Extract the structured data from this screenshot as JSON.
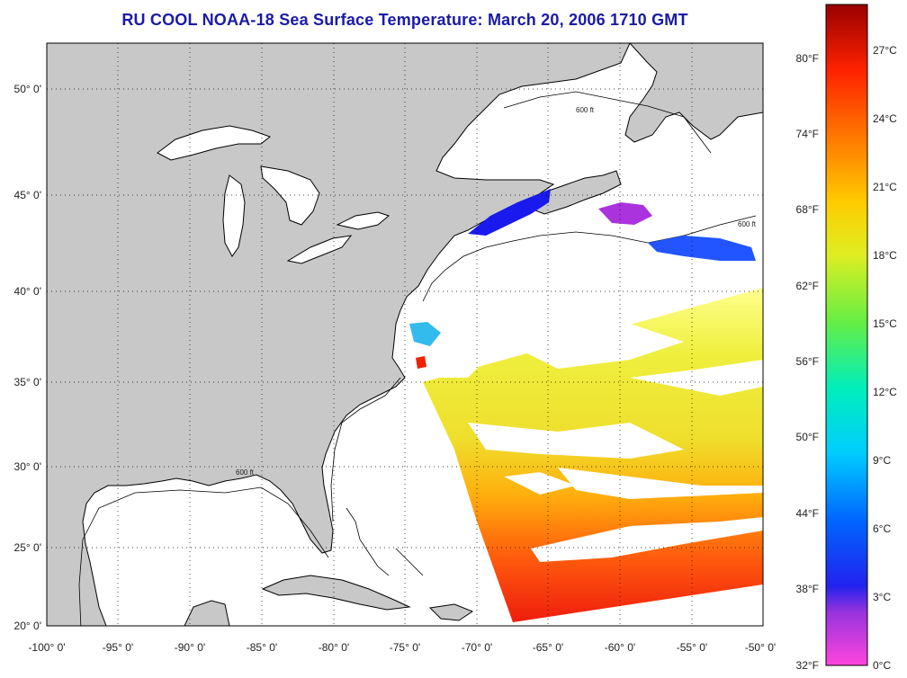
{
  "title": "RU COOL  NOAA-18  Sea Surface Temperature:  March 20, 2006 1710 GMT",
  "lat_labels": [
    "50° 0'",
    "45° 0'",
    "40° 0'",
    "35° 0'",
    "30° 0'",
    "25° 0'",
    "20° 0'"
  ],
  "lon_labels": [
    "-100° 0'",
    "-95° 0'",
    "-90° 0'",
    "-85° 0'",
    "-80° 0'",
    "-75° 0'",
    "-70° 0'",
    "-65° 0'",
    "-60° 0'",
    "-55° 0'",
    "-50° 0'"
  ],
  "colorbar": {
    "fahrenheit": [
      "80°F",
      "74°F",
      "68°F",
      "62°F",
      "56°F",
      "50°F",
      "44°F",
      "38°F",
      "32°F"
    ],
    "celsius": [
      "27°C",
      "24°C",
      "21°C",
      "18°C",
      "15°C",
      "12°C",
      "9°C",
      "6°C",
      "3°C",
      "0°C"
    ],
    "colors": [
      "#ff33cc",
      "#9933dd",
      "#2222ee",
      "#1188ff",
      "#00e5e5",
      "#22dd88",
      "#99ee22",
      "#eeee22",
      "#ffaa00",
      "#ff5500",
      "#ee1100",
      "#aa0000"
    ]
  },
  "isobath_label": "600 ft",
  "colors": {
    "land": "#c8c8c8",
    "ocean": "#ffffff",
    "title": "#1a1aa8"
  }
}
